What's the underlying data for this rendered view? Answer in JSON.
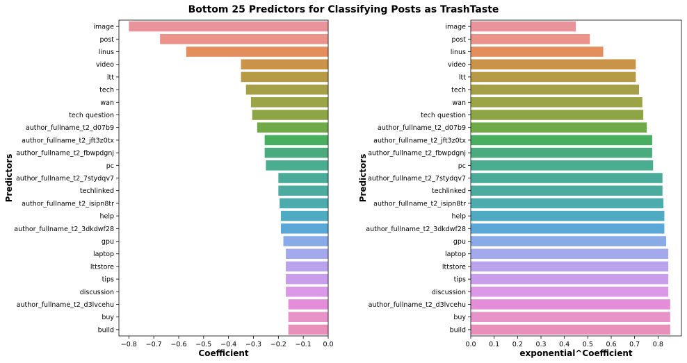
{
  "title": "Bottom 25 Predictors for Classifying Posts as TrashTaste",
  "colors": [
    "#e8949a",
    "#e9938a",
    "#e58e5d",
    "#c99349",
    "#b79a45",
    "#a59f47",
    "#9ca546",
    "#8ea546",
    "#70aa48",
    "#4aae60",
    "#4bab7f",
    "#4aad90",
    "#4bab9b",
    "#4bab9f",
    "#4cabac",
    "#4fabc1",
    "#5aa8d8",
    "#89aae6",
    "#a4a8ed",
    "#b9a4ec",
    "#c99deb",
    "#db98e7",
    "#e48ed9",
    "#e792c9",
    "#e890ba"
  ],
  "chart_data": [
    {
      "type": "bar",
      "orientation": "horizontal",
      "xlabel": "Coefficient",
      "ylabel": "Predictors",
      "xlim": [
        -0.84,
        0.0
      ],
      "xticks": [
        -0.8,
        -0.7,
        -0.6,
        -0.5,
        -0.4,
        -0.3,
        -0.2,
        -0.1,
        0.0
      ],
      "xtick_labels": [
        "−0.8",
        "−0.7",
        "−0.6",
        "−0.5",
        "−0.4",
        "−0.3",
        "−0.2",
        "−0.1",
        "0.0"
      ],
      "categories": [
        "image",
        "post",
        "linus",
        "video",
        "ltt",
        "tech",
        "wan",
        "tech question",
        "author_fullname_t2_d07b9",
        "author_fullname_t2_jft3z0tx",
        "author_fullname_t2_fbwpdgnj",
        "pc",
        "author_fullname_t2_7stydqv7",
        "techlinked",
        "author_fullname_t2_isipn8tr",
        "help",
        "author_fullname_t2_3dkdwf28",
        "gpu",
        "laptop",
        "lttstore",
        "tips",
        "discussion",
        "author_fullname_t2_d3lvcehu",
        "buy",
        "build"
      ],
      "values": [
        -0.8,
        -0.675,
        -0.57,
        -0.35,
        -0.35,
        -0.33,
        -0.31,
        -0.305,
        -0.285,
        -0.255,
        -0.255,
        -0.25,
        -0.2,
        -0.2,
        -0.195,
        -0.19,
        -0.19,
        -0.18,
        -0.17,
        -0.17,
        -0.17,
        -0.17,
        -0.16,
        -0.16,
        -0.16
      ]
    },
    {
      "type": "bar",
      "orientation": "horizontal",
      "xlabel": "exponential^Coefficient",
      "ylabel": "Predictors",
      "xlim": [
        0.0,
        0.9
      ],
      "xticks": [
        0.0,
        0.1,
        0.2,
        0.3,
        0.4,
        0.5,
        0.6,
        0.7,
        0.8
      ],
      "xtick_labels": [
        "0.0",
        "0.1",
        "0.2",
        "0.3",
        "0.4",
        "0.5",
        "0.6",
        "0.7",
        "0.8"
      ],
      "categories": [
        "image",
        "post",
        "linus",
        "video",
        "ltt",
        "tech",
        "wan",
        "tech question",
        "author_fullname_t2_d07b9",
        "author_fullname_t2_jft3z0tx",
        "author_fullname_t2_fbwpdgnj",
        "pc",
        "author_fullname_t2_7stydqv7",
        "techlinked",
        "author_fullname_t2_isipn8tr",
        "help",
        "author_fullname_t2_3dkdwf28",
        "gpu",
        "laptop",
        "lttstore",
        "tips",
        "discussion",
        "author_fullname_t2_d3lvcehu",
        "buy",
        "build"
      ],
      "values": [
        0.449,
        0.509,
        0.566,
        0.705,
        0.705,
        0.719,
        0.733,
        0.737,
        0.752,
        0.775,
        0.775,
        0.779,
        0.819,
        0.819,
        0.823,
        0.827,
        0.827,
        0.835,
        0.844,
        0.844,
        0.844,
        0.844,
        0.852,
        0.852,
        0.852
      ]
    }
  ]
}
